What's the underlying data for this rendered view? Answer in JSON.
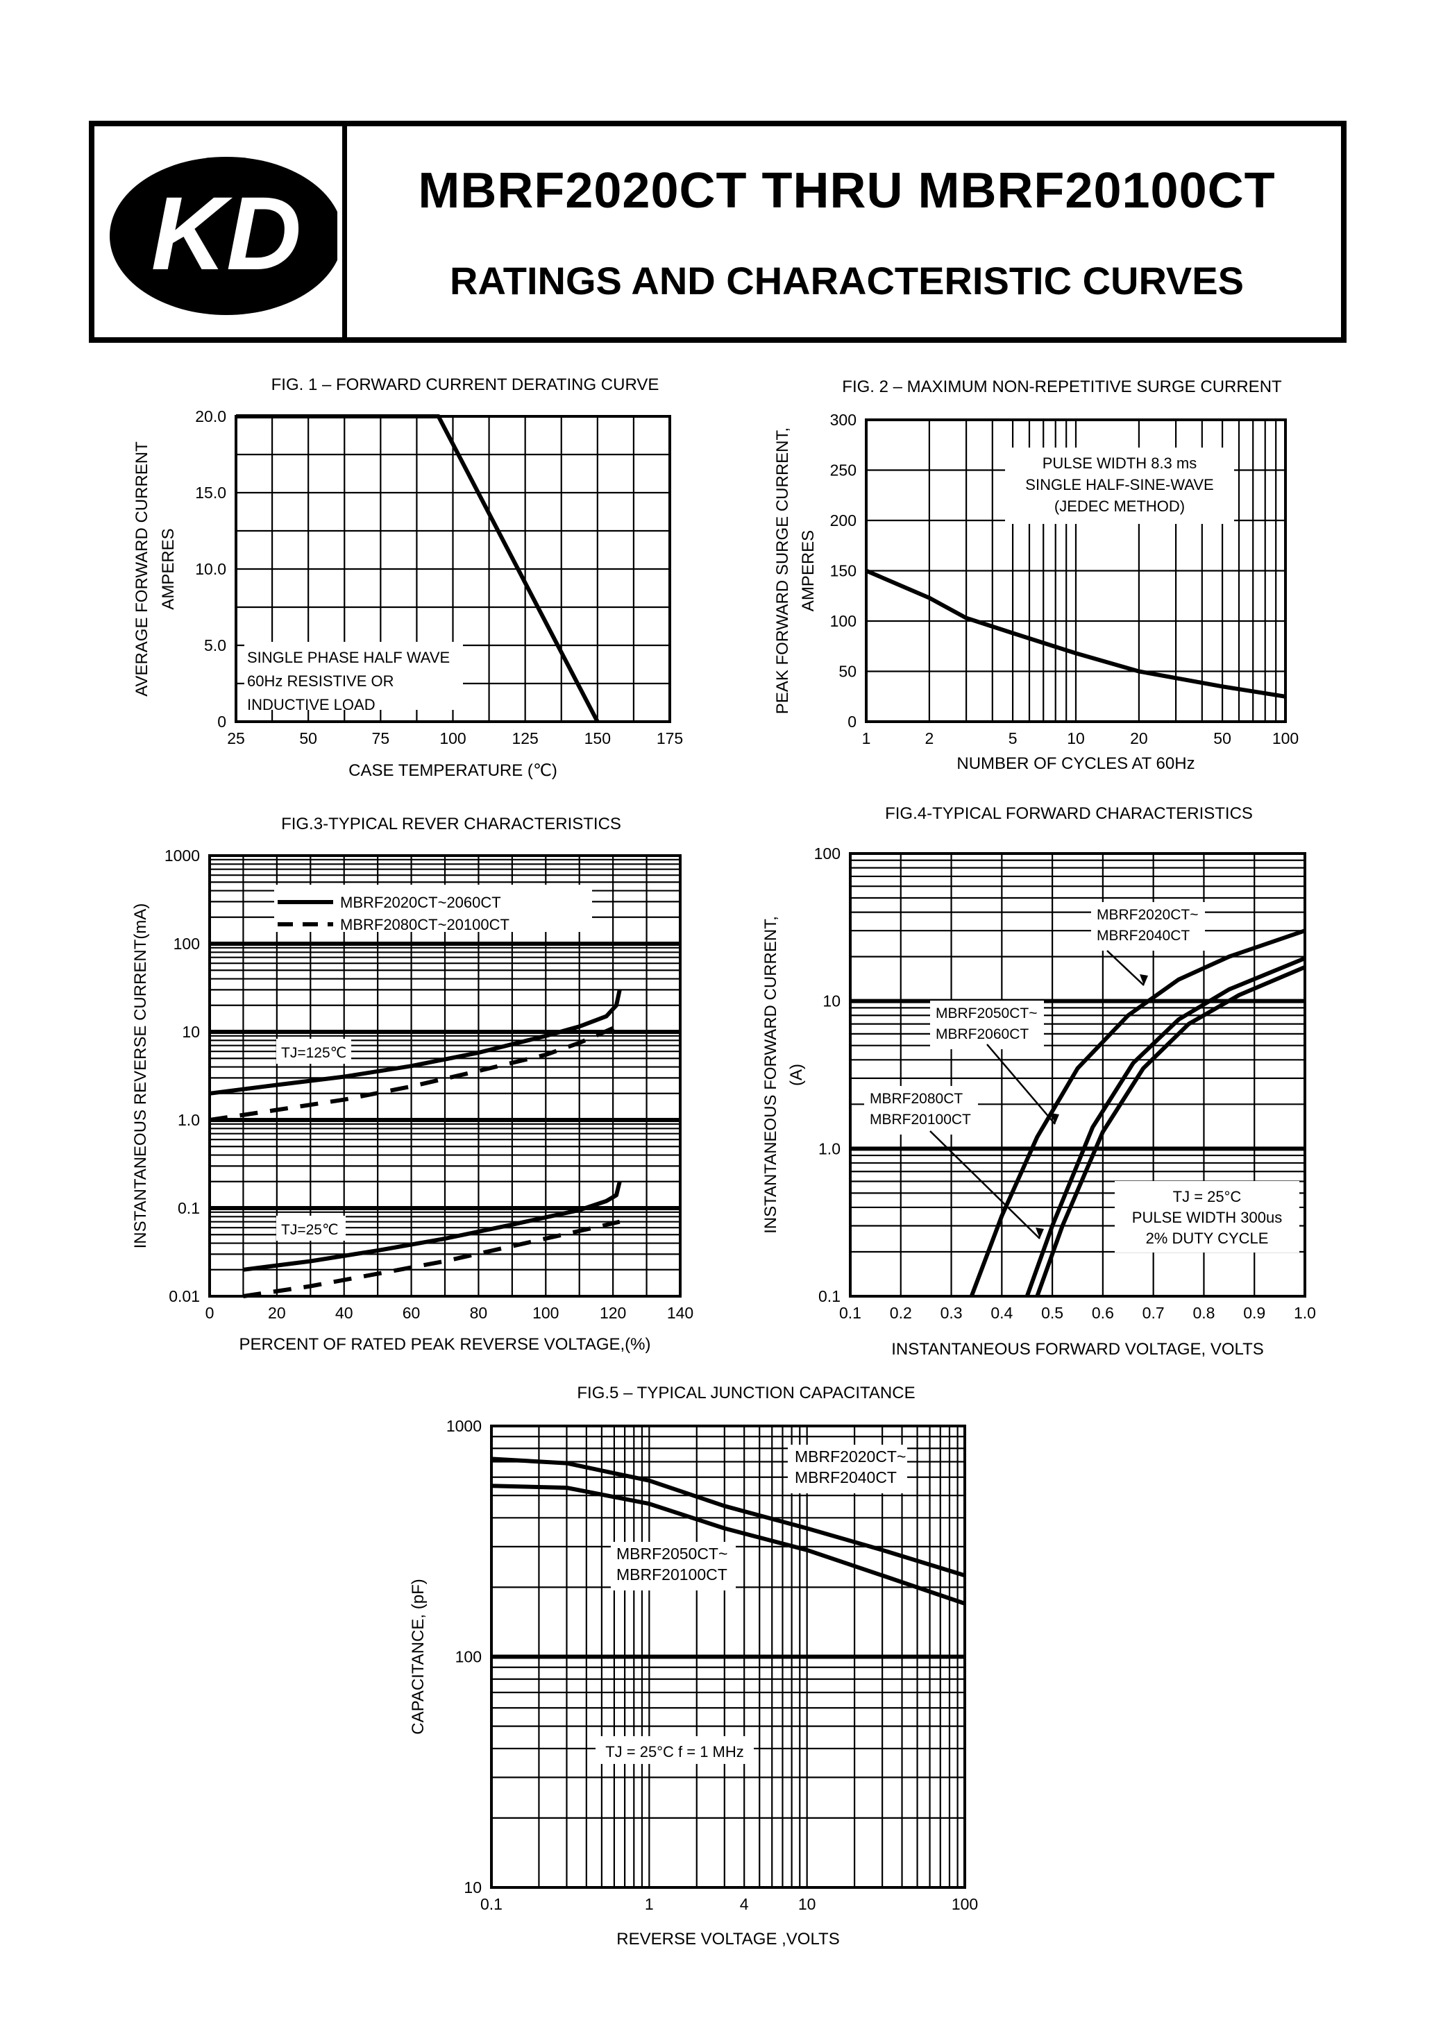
{
  "header": {
    "logo_text": "KD",
    "title": "MBRF2020CT  THRU  MBRF20100CT",
    "subtitle": "RATINGS AND CHARACTERISTIC CURVES"
  },
  "chart_data": [
    {
      "id": "fig1",
      "type": "line",
      "title": "FIG. 1 – FORWARD CURRENT DERATING CURVE",
      "xlabel": "CASE  TEMPERATURE  (℃)",
      "ylabel": [
        "AVERAGE FORWARD CURRENT",
        "AMPERES"
      ],
      "xlim": [
        25,
        175
      ],
      "ylim": [
        0,
        20
      ],
      "x_ticks": [
        25,
        50,
        75,
        100,
        125,
        150,
        175
      ],
      "x_tick_labels": [
        "25",
        "50",
        "75",
        "100",
        "125",
        "150",
        "175"
      ],
      "y_ticks": [
        0,
        5,
        10,
        15,
        20
      ],
      "y_tick_labels": [
        "0",
        "5.0",
        "10.0",
        "15.0",
        "20.0"
      ],
      "grid": true,
      "annotation": [
        "SINGLE PHASE HALF WAVE",
        "60Hz RESISTIVE OR",
        "INDUCTIVE LOAD"
      ],
      "series": [
        {
          "x": [
            25,
            95,
            150
          ],
          "y": [
            20,
            20,
            0
          ]
        }
      ]
    },
    {
      "id": "fig2",
      "type": "line",
      "title": "FIG. 2 – MAXIMUM NON-REPETITIVE SURGE CURRENT",
      "xlabel": "NUMBER OF CYCLES AT 60Hz",
      "ylabel": [
        "PEAK FORWARD SURGE CURRENT,",
        "AMPERES"
      ],
      "xscale": "log",
      "xlim": [
        1,
        100
      ],
      "ylim": [
        0,
        300
      ],
      "x_ticks": [
        1,
        2,
        5,
        10,
        20,
        50,
        100
      ],
      "x_tick_labels": [
        "1",
        "2",
        "5",
        "10",
        "20",
        "50",
        "100"
      ],
      "y_ticks": [
        0,
        50,
        100,
        150,
        200,
        250,
        300
      ],
      "y_tick_labels": [
        "0",
        "50",
        "100",
        "150",
        "200",
        "250",
        "300"
      ],
      "grid": true,
      "annotation": [
        "PULSE WIDTH 8.3 ms",
        "SINGLE HALF-SINE-WAVE",
        "(JEDEC METHOD)"
      ],
      "series": [
        {
          "x": [
            1,
            2,
            3,
            5,
            10,
            20,
            50,
            100
          ],
          "y": [
            150,
            123,
            103,
            88,
            68,
            50,
            35,
            25
          ]
        }
      ]
    },
    {
      "id": "fig3",
      "type": "line",
      "title": "FIG.3-TYPICAL REVER CHARACTERISTICS",
      "xlabel": "PERCENT OF RATED PEAK REVERSE VOLTAGE,(%)",
      "ylabel": [
        "INSTANTANEOUS REVERSE CURRENT(mA)"
      ],
      "yscale": "log",
      "xlim": [
        0,
        140
      ],
      "ylim": [
        0.01,
        1000
      ],
      "x_ticks": [
        0,
        20,
        40,
        60,
        80,
        100,
        120,
        140
      ],
      "x_tick_labels": [
        "0",
        "20",
        "40",
        "60",
        "80",
        "100",
        "120",
        "140"
      ],
      "y_ticks": [
        0.01,
        0.1,
        1,
        10,
        100,
        1000
      ],
      "y_tick_labels": [
        "0.01",
        "0.1",
        "1.0",
        "10",
        "100",
        "1000"
      ],
      "grid": true,
      "legend": [
        "MBRF2020CT~2060CT",
        "MBRF2080CT~20100CT"
      ],
      "annotations": [
        {
          "text": "TJ=125℃"
        },
        {
          "text": "TJ=25℃"
        }
      ],
      "series": [
        {
          "name": "MBRF2020CT~2060CT",
          "group": "TJ=125℃",
          "style": "solid",
          "x": [
            0,
            20,
            40,
            60,
            80,
            100,
            110,
            118,
            121,
            122
          ],
          "y": [
            2,
            2.5,
            3.1,
            4.1,
            5.8,
            9,
            11.5,
            15,
            20,
            30
          ]
        },
        {
          "name": "MBRF2080CT~20100CT",
          "group": "TJ=125℃",
          "style": "dashed",
          "x": [
            0,
            20,
            40,
            60,
            80,
            100,
            110,
            120,
            122
          ],
          "y": [
            1,
            1.3,
            1.7,
            2.4,
            3.6,
            5.5,
            7.5,
            11,
            13
          ]
        },
        {
          "name": "MBRF2020CT~2060CT",
          "group": "TJ=25℃",
          "style": "solid",
          "x": [
            10,
            30,
            50,
            70,
            90,
            110,
            118,
            121,
            122
          ],
          "y": [
            0.02,
            0.025,
            0.033,
            0.045,
            0.065,
            0.095,
            0.12,
            0.14,
            0.2
          ]
        },
        {
          "name": "MBRF2080CT~20100CT",
          "group": "TJ=25℃",
          "style": "dashed",
          "x": [
            10,
            30,
            50,
            70,
            90,
            110,
            122
          ],
          "y": [
            0.01,
            0.013,
            0.018,
            0.025,
            0.037,
            0.055,
            0.07
          ]
        }
      ]
    },
    {
      "id": "fig4",
      "type": "line",
      "title": "FIG.4-TYPICAL FORWARD CHARACTERISTICS",
      "xlabel": "INSTANTANEOUS FORWARD VOLTAGE, VOLTS",
      "ylabel": [
        "INSTANTANEOUS FORWARD CURRENT,",
        "(A)"
      ],
      "yscale": "log",
      "xlim": [
        0.1,
        1.0
      ],
      "ylim": [
        0.1,
        100
      ],
      "x_ticks": [
        0.1,
        0.2,
        0.3,
        0.4,
        0.5,
        0.6,
        0.7,
        0.8,
        0.9,
        1.0
      ],
      "x_tick_labels": [
        "0.1",
        "0.2",
        "0.3",
        "0.4",
        "0.5",
        "0.6",
        "0.7",
        "0.8",
        "0.9",
        "1.0"
      ],
      "y_ticks": [
        0.1,
        1,
        10,
        100
      ],
      "y_tick_labels": [
        "0.1",
        "1.0",
        "10",
        "100"
      ],
      "grid": true,
      "annotation": [
        "TJ = 25°C",
        "PULSE WIDTH 300us",
        "2% DUTY CYCLE"
      ],
      "series": [
        {
          "name": "MBRF2020CT~ MBRF2040CT",
          "label": [
            "MBRF2020CT~",
            "MBRF2040CT"
          ],
          "x": [
            0.34,
            0.4,
            0.47,
            0.55,
            0.65,
            0.75,
            0.85,
            1.0
          ],
          "y": [
            0.1,
            0.35,
            1.2,
            3.5,
            8,
            14,
            20,
            30
          ]
        },
        {
          "name": "MBRF2050CT~ MBRF2060CT",
          "label": [
            "MBRF2050CT~",
            "MBRF2060CT"
          ],
          "x": [
            0.45,
            0.5,
            0.58,
            0.66,
            0.75,
            0.85,
            1.0
          ],
          "y": [
            0.1,
            0.3,
            1.4,
            3.8,
            7.5,
            12,
            19.5
          ]
        },
        {
          "name": "MBRF2080CT MBRF20100CT",
          "label": [
            "MBRF2080CT",
            "MBRF20100CT"
          ],
          "x": [
            0.47,
            0.52,
            0.6,
            0.68,
            0.77,
            0.87,
            1.0
          ],
          "y": [
            0.1,
            0.3,
            1.3,
            3.5,
            7,
            11,
            17
          ]
        }
      ]
    },
    {
      "id": "fig5",
      "type": "line",
      "title": "FIG.5 – TYPICAL JUNCTION CAPACITANCE",
      "xlabel": "REVERSE VOLTAGE ,VOLTS",
      "ylabel": [
        "CAPACITANCE, (pF)"
      ],
      "xscale": "log",
      "yscale": "log",
      "xlim": [
        0.1,
        100
      ],
      "ylim": [
        10,
        1000
      ],
      "x_ticks": [
        0.1,
        1,
        4,
        10,
        100
      ],
      "x_tick_labels": [
        "0.1",
        "1",
        "4",
        "10",
        "100"
      ],
      "y_ticks": [
        10,
        100,
        1000
      ],
      "y_tick_labels": [
        "10",
        "100",
        "1000"
      ],
      "grid": true,
      "annotation": [
        "TJ = 25°C  f = 1 MHz"
      ],
      "series": [
        {
          "name": "MBRF2020CT~ MBRF2040CT",
          "label": [
            "MBRF2020CT~",
            "MBRF2040CT"
          ],
          "x": [
            0.1,
            0.3,
            1,
            3,
            10,
            30,
            100
          ],
          "y": [
            720,
            690,
            580,
            450,
            360,
            290,
            225
          ]
        },
        {
          "name": "MBRF2050CT~ MBRF20100CT",
          "label": [
            "MBRF2050CT~",
            "MBRF20100CT"
          ],
          "x": [
            0.1,
            0.3,
            1,
            3,
            10,
            30,
            100
          ],
          "y": [
            550,
            540,
            460,
            360,
            290,
            225,
            170
          ]
        }
      ]
    }
  ]
}
